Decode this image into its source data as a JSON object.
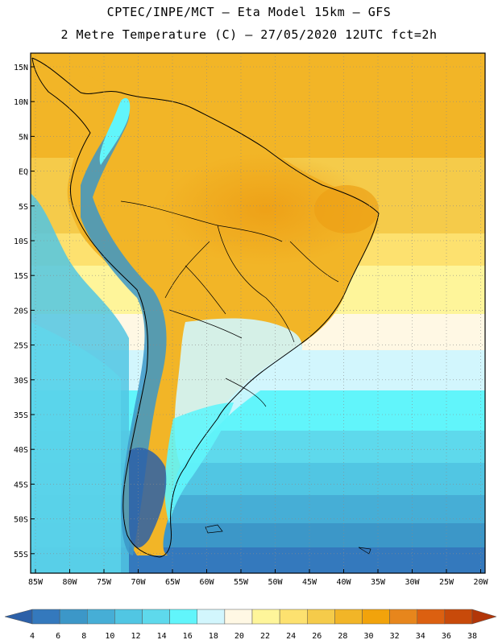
{
  "header": {
    "line1": "CPTEC/INPE/MCT –  Eta Model 15km – GFS",
    "line2": "2 Metre Temperature (C) – 27/05/2020 12UTC fct=2h"
  },
  "axes": {
    "lat_labels": [
      "15N",
      "10N",
      "5N",
      "EQ",
      "5S",
      "10S",
      "15S",
      "20S",
      "25S",
      "30S",
      "35S",
      "40S",
      "45S",
      "50S",
      "55S"
    ],
    "lon_labels": [
      "85W",
      "80W",
      "75W",
      "70W",
      "65W",
      "60W",
      "55W",
      "50W",
      "45W",
      "40W",
      "35W",
      "30W",
      "25W",
      "20W"
    ]
  },
  "legend": {
    "values": [
      "4",
      "6",
      "8",
      "10",
      "12",
      "14",
      "16",
      "18",
      "20",
      "22",
      "24",
      "26",
      "28",
      "30",
      "32",
      "34",
      "36",
      "38"
    ],
    "colors": [
      "#2c60a8",
      "#3479bd",
      "#3c97c8",
      "#46aed6",
      "#51c6e3",
      "#5ed9ec",
      "#61f5fb",
      "#d2f6fd",
      "#fff8e4",
      "#fef59a",
      "#fde16f",
      "#f5cb4a",
      "#f2b527",
      "#f2a30b",
      "#e7861c",
      "#dc6010",
      "#c84a0a",
      "#b23608"
    ]
  }
}
